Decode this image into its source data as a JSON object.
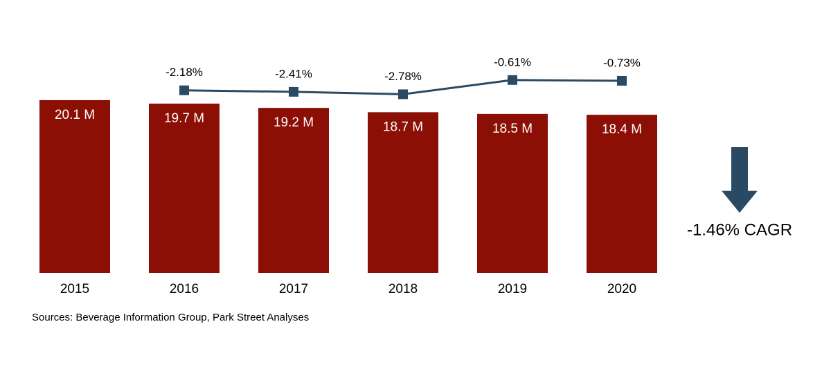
{
  "chart_data": {
    "type": "bar",
    "categories": [
      "2015",
      "2016",
      "2017",
      "2018",
      "2019",
      "2020"
    ],
    "values": [
      20.1,
      19.7,
      19.2,
      18.7,
      18.5,
      18.4
    ],
    "value_labels": [
      "20.1 M",
      "19.7 M",
      "19.2 M",
      "18.7 M",
      "18.5 M",
      "18.4 M"
    ],
    "color": "#8b0f04",
    "ylim": [
      0,
      25
    ],
    "y2lim": [
      -30,
      0
    ],
    "series": [
      {
        "type": "line",
        "axis": "y2",
        "color": "#2a4a63",
        "values": [
          null,
          -2.18,
          -2.41,
          -2.78,
          -0.61,
          -0.73
        ],
        "value_labels": [
          null,
          "-2.18%",
          "-2.41%",
          "-2.78%",
          "-0.61%",
          "-0.73%"
        ]
      }
    ],
    "annotation": "-1.46% CAGR",
    "source": "Sources: Beverage Information Group, Park Street Analyses"
  }
}
